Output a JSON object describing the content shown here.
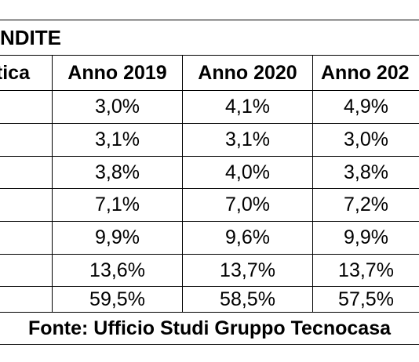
{
  "table": {
    "title": "NDITE",
    "header": {
      "label": "tica",
      "columns": [
        "Anno 2019",
        "Anno 2020",
        "Anno 202"
      ]
    },
    "rows": [
      [
        "3,0%",
        "4,1%",
        "4,9%"
      ],
      [
        "3,1%",
        "3,1%",
        "3,0%"
      ],
      [
        "3,8%",
        "4,0%",
        "3,8%"
      ],
      [
        "7,1%",
        "7,0%",
        "7,2%"
      ],
      [
        "9,9%",
        "9,6%",
        "9,9%"
      ],
      [
        "13,6%",
        "13,7%",
        "13,7%"
      ],
      [
        "59,5%",
        "58,5%",
        "57,5%"
      ]
    ],
    "source": "Fonte: Ufficio Studi Gruppo Tecnocasa"
  }
}
